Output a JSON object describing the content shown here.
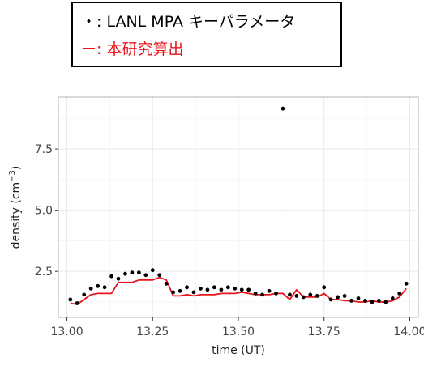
{
  "legend": {
    "items": [
      {
        "symbol": "・:",
        "label": "LANL MPA キーパラメータ",
        "color": "#000000"
      },
      {
        "symbol": "ー:",
        "label": "本研究算出",
        "color": "#e8141c"
      }
    ]
  },
  "chart_data": {
    "type": "scatter",
    "xlabel": "time (UT)",
    "ylabel": "density (cm",
    "ylabel_exponent": "−3",
    "ylabel_suffix": ")",
    "xlim": [
      12.975,
      14.025
    ],
    "ylim": [
      0.62,
      9.62
    ],
    "x_ticks": [
      13.0,
      13.25,
      13.5,
      13.75,
      14.0
    ],
    "x_tick_labels": [
      "13.00",
      "13.25",
      "13.50",
      "13.75",
      "14.00"
    ],
    "y_ticks": [
      2.5,
      5.0,
      7.5
    ],
    "y_tick_labels": [
      "2.5",
      "5.0",
      "7.5"
    ],
    "grid": true,
    "panel_background": "#ffffff",
    "grid_color": "#ebebeb",
    "series": [
      {
        "name": "LANL MPA キーパラメータ",
        "style": "points",
        "color": "#000000",
        "x": [
          13.01,
          13.03,
          13.05,
          13.07,
          13.09,
          13.11,
          13.13,
          13.15,
          13.17,
          13.19,
          13.21,
          13.23,
          13.25,
          13.27,
          13.29,
          13.31,
          13.33,
          13.35,
          13.37,
          13.39,
          13.41,
          13.43,
          13.45,
          13.47,
          13.49,
          13.51,
          13.53,
          13.55,
          13.57,
          13.59,
          13.61,
          13.63,
          13.65,
          13.67,
          13.69,
          13.71,
          13.73,
          13.75,
          13.77,
          13.79,
          13.81,
          13.83,
          13.85,
          13.87,
          13.89,
          13.91,
          13.93,
          13.95,
          13.97,
          13.99
        ],
        "y": [
          1.35,
          1.2,
          1.55,
          1.8,
          1.9,
          1.85,
          2.3,
          2.2,
          2.4,
          2.45,
          2.45,
          2.35,
          2.55,
          2.35,
          2.0,
          1.65,
          1.7,
          1.85,
          1.65,
          1.8,
          1.75,
          1.85,
          1.75,
          1.85,
          1.8,
          1.75,
          1.75,
          1.6,
          1.55,
          1.7,
          1.6,
          9.15,
          1.55,
          1.5,
          1.45,
          1.55,
          1.5,
          1.85,
          1.35,
          1.45,
          1.5,
          1.3,
          1.4,
          1.3,
          1.25,
          1.3,
          1.25,
          1.4,
          1.6,
          2.0
        ]
      },
      {
        "name": "本研究算出",
        "style": "line",
        "color": "#e8141c",
        "x": [
          13.01,
          13.03,
          13.05,
          13.07,
          13.09,
          13.11,
          13.13,
          13.15,
          13.17,
          13.19,
          13.21,
          13.23,
          13.25,
          13.27,
          13.29,
          13.31,
          13.33,
          13.35,
          13.37,
          13.39,
          13.41,
          13.43,
          13.45,
          13.47,
          13.49,
          13.51,
          13.53,
          13.55,
          13.57,
          13.59,
          13.61,
          13.63,
          13.65,
          13.67,
          13.69,
          13.71,
          13.73,
          13.75,
          13.77,
          13.79,
          13.81,
          13.83,
          13.85,
          13.87,
          13.89,
          13.91,
          13.93,
          13.95,
          13.97,
          13.99
        ],
        "y": [
          1.2,
          1.15,
          1.35,
          1.55,
          1.6,
          1.6,
          1.6,
          2.05,
          2.05,
          2.05,
          2.15,
          2.15,
          2.15,
          2.25,
          2.15,
          1.5,
          1.5,
          1.55,
          1.5,
          1.55,
          1.55,
          1.55,
          1.6,
          1.6,
          1.6,
          1.65,
          1.6,
          1.55,
          1.55,
          1.55,
          1.6,
          1.6,
          1.35,
          1.75,
          1.45,
          1.45,
          1.45,
          1.6,
          1.35,
          1.35,
          1.3,
          1.3,
          1.25,
          1.25,
          1.3,
          1.25,
          1.25,
          1.3,
          1.45,
          1.8
        ]
      }
    ]
  }
}
